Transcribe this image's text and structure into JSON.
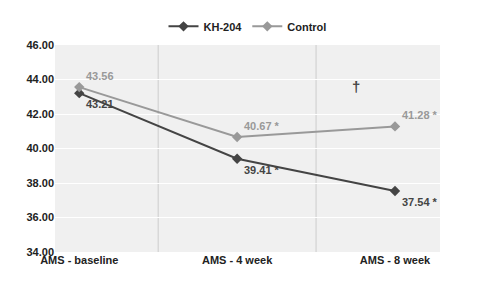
{
  "chart_data": {
    "type": "line",
    "categories": [
      "AMS - baseline",
      "AMS - 4 week",
      "AMS - 8 week"
    ],
    "series": [
      {
        "name": "KH-204",
        "color": "#444444",
        "marker": "diamond",
        "values": [
          43.21,
          39.41,
          37.54
        ],
        "value_labels": [
          "43.21",
          "39.41 *",
          "37.54 *"
        ]
      },
      {
        "name": "Control",
        "color": "#999999",
        "marker": "diamond",
        "values": [
          43.56,
          40.67,
          41.28
        ],
        "value_labels": [
          "43.56",
          "40.67 *",
          "41.28 *"
        ]
      }
    ],
    "data_labels": true,
    "annotations": [
      {
        "text": "†",
        "x": 1.75,
        "y": 43.6
      }
    ],
    "ylim": [
      34.0,
      46.0
    ],
    "yticks": [
      {
        "value": 34.0,
        "label": "34.00"
      },
      {
        "value": 36.0,
        "label": "36.00"
      },
      {
        "value": 38.0,
        "label": "38.00"
      },
      {
        "value": 40.0,
        "label": "40.00"
      },
      {
        "value": 42.0,
        "label": "42.00"
      },
      {
        "value": 44.0,
        "label": "44.00"
      },
      {
        "value": 46.0,
        "label": "46.00"
      }
    ],
    "grid": true,
    "legend": "top"
  }
}
